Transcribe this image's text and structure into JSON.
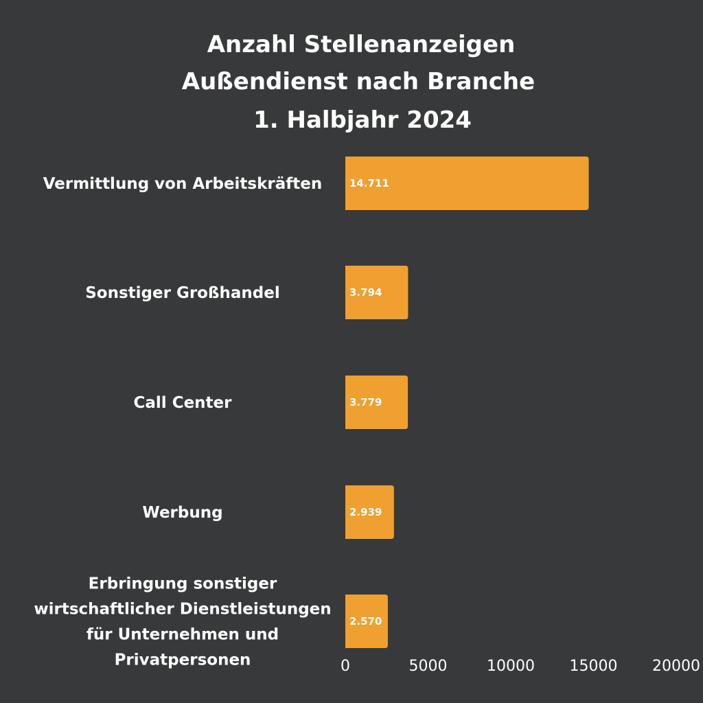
{
  "chart_data": {
    "type": "bar",
    "orientation": "horizontal",
    "title_lines": [
      "Anzahl Stellenanzeigen",
      "Außendienst nach Branche",
      "1. Halbjahr 2024"
    ],
    "categories": [
      "Vermittlung von Arbeitskräften",
      "Sonstiger Großhandel",
      "Call Center",
      "Werbung",
      "Erbringung sonstiger wirtschaftlicher Dienstleistungen für Unternehmen und Privatpersonen"
    ],
    "category_label_lines": [
      [
        "Vermittlung von Arbeitskräften"
      ],
      [
        "Sonstiger Großhandel"
      ],
      [
        "Call Center"
      ],
      [
        "Werbung"
      ],
      [
        "Erbringung sonstiger",
        "wirtschaftlicher Dienstleistungen",
        "für Unternehmen und",
        "Privatpersonen"
      ]
    ],
    "values": [
      14711,
      3794,
      3779,
      2939,
      2570
    ],
    "value_labels": [
      "14.711",
      "3.794",
      "3.779",
      "2.939",
      "2.570"
    ],
    "xlim": [
      0,
      20000
    ],
    "x_ticks": [
      0,
      5000,
      10000,
      15000,
      20000
    ],
    "x_tick_labels": [
      "0",
      "5000",
      "10000",
      "15000",
      "20000"
    ],
    "grid": false,
    "legend": "none",
    "colors": {
      "background": "#38393a",
      "bar": "#f0a030",
      "text": "#ffffff"
    }
  }
}
